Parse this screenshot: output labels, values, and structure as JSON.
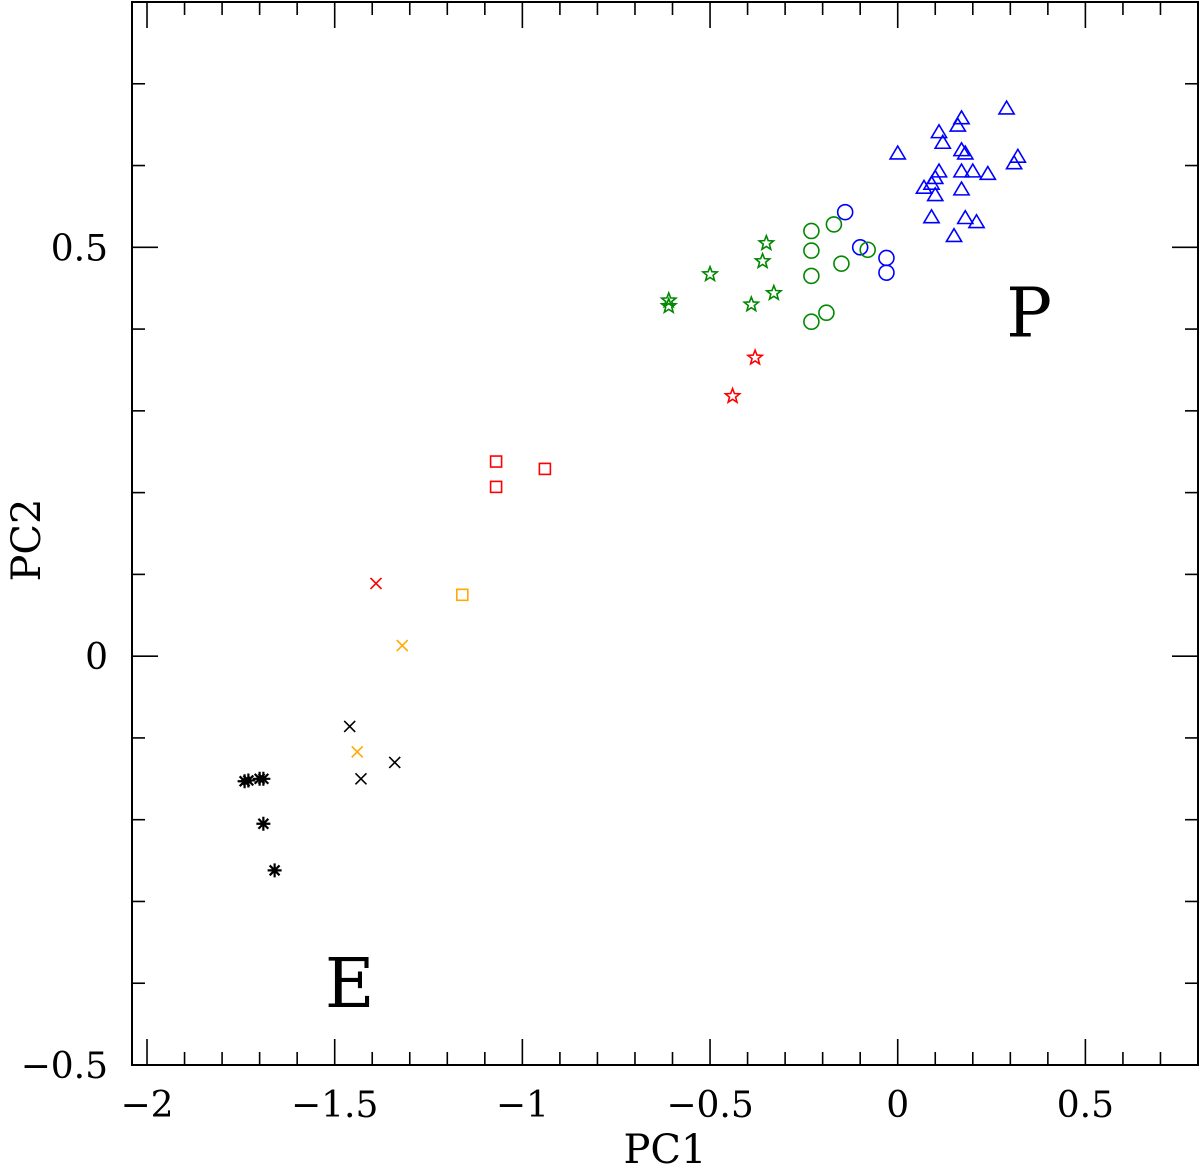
{
  "chart_data": {
    "type": "scatter",
    "title": "",
    "xlabel": "PC1",
    "ylabel": "PC2",
    "xlim": [
      -2.04,
      0.8
    ],
    "ylim": [
      -0.5,
      0.8
    ],
    "x_ticks": [
      -2,
      -1.5,
      -1,
      -0.5,
      0,
      0.5
    ],
    "x_tick_labels": [
      "−2",
      "−1.5",
      "−1",
      "−0.5",
      "0",
      "0.5"
    ],
    "y_ticks": [
      -0.5,
      0,
      0.5
    ],
    "y_tick_labels": [
      "−0.5",
      "0",
      "0.5"
    ],
    "x_minor_step": 0.1,
    "y_minor_step": 0.1,
    "grid": false,
    "annotations": [
      {
        "text": "P",
        "x": 0.35,
        "y": 0.42
      },
      {
        "text": "E",
        "x": -1.46,
        "y": -0.4
      }
    ],
    "series": [
      {
        "marker": "triangle",
        "color": "#0000ff",
        "points": [
          [
            0.29,
            0.669
          ],
          [
            0.17,
            0.657
          ],
          [
            0.16,
            0.648
          ],
          [
            0.11,
            0.64
          ],
          [
            0.12,
            0.627
          ],
          [
            0.17,
            0.618
          ],
          [
            0.18,
            0.614
          ],
          [
            0.0,
            0.614
          ],
          [
            0.32,
            0.61
          ],
          [
            0.31,
            0.602
          ],
          [
            0.17,
            0.592
          ],
          [
            0.2,
            0.592
          ],
          [
            0.24,
            0.589
          ],
          [
            0.11,
            0.592
          ],
          [
            0.1,
            0.584
          ],
          [
            0.09,
            0.577
          ],
          [
            0.07,
            0.572
          ],
          [
            0.17,
            0.57
          ],
          [
            0.1,
            0.563
          ],
          [
            0.09,
            0.536
          ],
          [
            0.18,
            0.535
          ],
          [
            0.21,
            0.53
          ],
          [
            0.15,
            0.513
          ]
        ]
      },
      {
        "marker": "circle",
        "color": "#0000ff",
        "points": [
          [
            -0.14,
            0.543
          ],
          [
            -0.1,
            0.5
          ],
          [
            -0.03,
            0.487
          ],
          [
            -0.03,
            0.469
          ]
        ]
      },
      {
        "marker": "circle",
        "color": "#008800",
        "points": [
          [
            -0.17,
            0.528
          ],
          [
            -0.23,
            0.52
          ],
          [
            -0.23,
            0.496
          ],
          [
            -0.08,
            0.497
          ],
          [
            -0.15,
            0.48
          ],
          [
            -0.23,
            0.465
          ],
          [
            -0.19,
            0.42
          ],
          [
            -0.23,
            0.409
          ]
        ]
      },
      {
        "marker": "star",
        "color": "#008800",
        "points": [
          [
            -0.35,
            0.505
          ],
          [
            -0.36,
            0.483
          ],
          [
            -0.5,
            0.467
          ],
          [
            -0.61,
            0.435
          ],
          [
            -0.61,
            0.428
          ],
          [
            -0.39,
            0.43
          ],
          [
            -0.33,
            0.444
          ]
        ]
      },
      {
        "marker": "star",
        "color": "#ff0000",
        "points": [
          [
            -0.38,
            0.365
          ],
          [
            -0.44,
            0.318
          ]
        ]
      },
      {
        "marker": "square",
        "color": "#ff0000",
        "points": [
          [
            -1.07,
            0.238
          ],
          [
            -0.94,
            0.229
          ],
          [
            -1.07,
            0.207
          ]
        ]
      },
      {
        "marker": "cross",
        "color": "#ff0000",
        "points": [
          [
            -1.39,
            0.089
          ]
        ]
      },
      {
        "marker": "square",
        "color": "#ffaa00",
        "points": [
          [
            -1.16,
            0.075
          ]
        ]
      },
      {
        "marker": "cross",
        "color": "#ffaa00",
        "points": [
          [
            -1.32,
            0.013
          ],
          [
            -1.44,
            -0.117
          ]
        ]
      },
      {
        "marker": "cross",
        "color": "#000000",
        "points": [
          [
            -1.46,
            -0.086
          ],
          [
            -1.34,
            -0.13
          ],
          [
            -1.43,
            -0.15
          ]
        ]
      },
      {
        "marker": "asterisk",
        "color": "#000000",
        "points": [
          [
            -1.69,
            -0.15
          ],
          [
            -1.7,
            -0.15
          ],
          [
            -1.73,
            -0.152
          ],
          [
            -1.74,
            -0.153
          ],
          [
            -1.69,
            -0.205
          ],
          [
            -1.66,
            -0.262
          ]
        ]
      }
    ]
  }
}
